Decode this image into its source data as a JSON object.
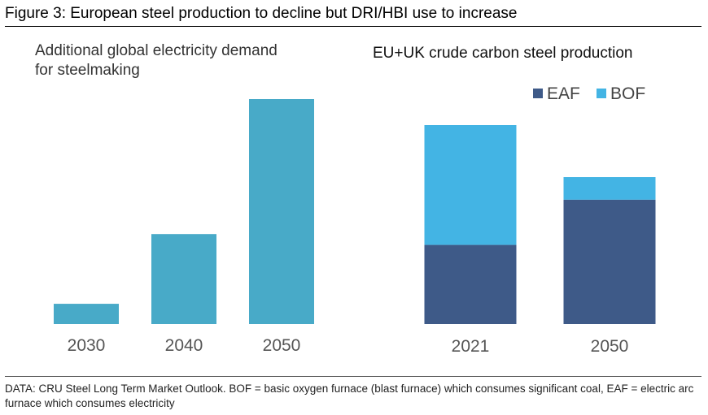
{
  "figure_title": "Figure 3: European steel production to decline but DRI/HBI use to increase",
  "footnote": "DATA: CRU Steel Long Term Market Outlook. BOF = basic oxygen furnace (blast furnace) which consumes significant coal, EAF = electric arc furnace which consumes electricity",
  "colors": {
    "demand_bar": "#48aac8",
    "eaf": "#3e5a88",
    "bof": "#43b4e4"
  },
  "chart_data": [
    {
      "type": "bar",
      "title_lines": [
        "Additional global electricity demand",
        "for steelmaking"
      ],
      "categories": [
        "2030",
        "2040",
        "2050"
      ],
      "values": [
        9,
        40,
        100
      ],
      "ylim": [
        0,
        100
      ],
      "grid": false,
      "legend": "none"
    },
    {
      "type": "bar",
      "stacked": true,
      "title": "EU+UK crude carbon steel production",
      "categories": [
        "2021",
        "2050"
      ],
      "series": [
        {
          "name": "EAF",
          "values": [
            35,
            55
          ]
        },
        {
          "name": "BOF",
          "values": [
            53,
            10
          ]
        }
      ],
      "ylim": [
        0,
        88
      ],
      "grid": false,
      "legend": "top-right"
    }
  ]
}
